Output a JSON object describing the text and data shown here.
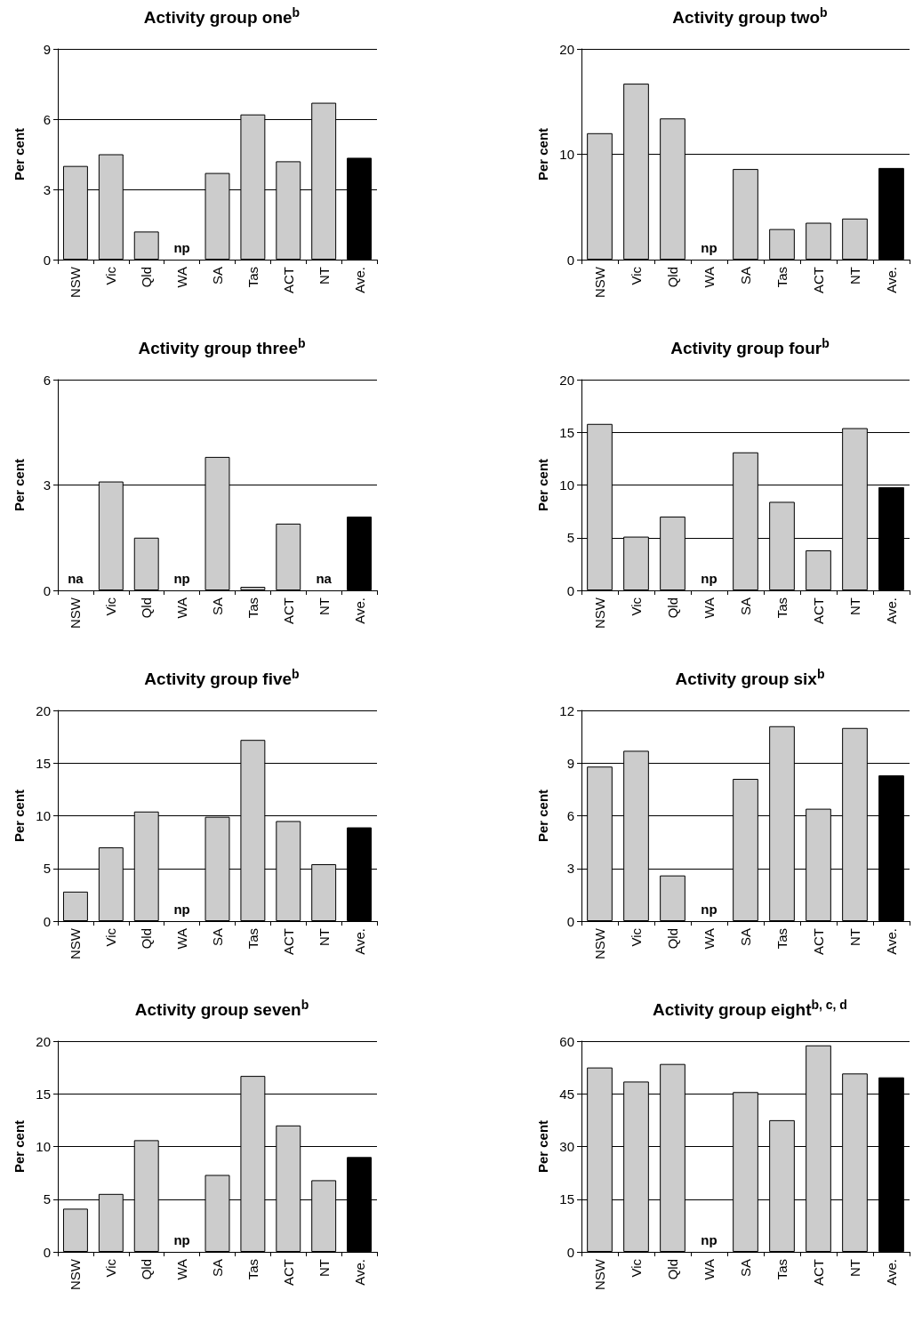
{
  "chart_data": [
    {
      "type": "bar",
      "title": "Activity group one$^{b}$",
      "ylabel": "Per cent",
      "categories": [
        "NSW",
        "Vic",
        "Qld",
        "WA",
        "SA",
        "Tas",
        "ACT",
        "NT",
        "Ave."
      ],
      "values": [
        4.0,
        4.5,
        1.2,
        null,
        3.7,
        6.2,
        4.2,
        6.7,
        4.35
      ],
      "value_labels": [
        null,
        null,
        null,
        "np",
        null,
        null,
        null,
        null,
        null
      ],
      "colors": [
        "#cccccc",
        "#cccccc",
        "#cccccc",
        "#cccccc",
        "#cccccc",
        "#cccccc",
        "#cccccc",
        "#cccccc",
        "#000000"
      ],
      "ylim": [
        0,
        9
      ],
      "yticks": [
        0,
        3,
        6,
        9
      ],
      "grid": "y"
    },
    {
      "type": "bar",
      "title": "Activity group two$^{b}$",
      "ylabel": "Per cent",
      "categories": [
        "NSW",
        "Vic",
        "Qld",
        "WA",
        "SA",
        "Tas",
        "ACT",
        "NT",
        "Ave."
      ],
      "values": [
        12.0,
        16.7,
        13.4,
        null,
        8.6,
        2.9,
        3.5,
        3.9,
        8.7
      ],
      "value_labels": [
        null,
        null,
        null,
        "np",
        null,
        null,
        null,
        null,
        null
      ],
      "colors": [
        "#cccccc",
        "#cccccc",
        "#cccccc",
        "#cccccc",
        "#cccccc",
        "#cccccc",
        "#cccccc",
        "#cccccc",
        "#000000"
      ],
      "ylim": [
        0,
        20
      ],
      "yticks": [
        0,
        10,
        20
      ],
      "grid": "y"
    },
    {
      "type": "bar",
      "title": "Activity group three$^{b}$",
      "ylabel": "Per cent",
      "categories": [
        "NSW",
        "Vic",
        "Qld",
        "WA",
        "SA",
        "Tas",
        "ACT",
        "NT",
        "Ave."
      ],
      "values": [
        null,
        3.1,
        1.5,
        null,
        3.8,
        0.1,
        1.9,
        null,
        2.1
      ],
      "value_labels": [
        "na",
        null,
        null,
        "np",
        null,
        null,
        null,
        "na",
        null
      ],
      "colors": [
        "#cccccc",
        "#cccccc",
        "#cccccc",
        "#cccccc",
        "#cccccc",
        "#cccccc",
        "#cccccc",
        "#cccccc",
        "#000000"
      ],
      "ylim": [
        0,
        6
      ],
      "yticks": [
        0,
        3,
        6
      ],
      "grid": "y"
    },
    {
      "type": "bar",
      "title": "Activity group four$^{b}$",
      "ylabel": "Per cent",
      "categories": [
        "NSW",
        "Vic",
        "Qld",
        "WA",
        "SA",
        "Tas",
        "ACT",
        "NT",
        "Ave."
      ],
      "values": [
        15.8,
        5.1,
        7.0,
        null,
        13.1,
        8.4,
        3.8,
        15.4,
        9.8
      ],
      "value_labels": [
        null,
        null,
        null,
        "np",
        null,
        null,
        null,
        null,
        null
      ],
      "colors": [
        "#cccccc",
        "#cccccc",
        "#cccccc",
        "#cccccc",
        "#cccccc",
        "#cccccc",
        "#cccccc",
        "#cccccc",
        "#000000"
      ],
      "ylim": [
        0,
        20
      ],
      "yticks": [
        0,
        5,
        10,
        15,
        20
      ],
      "grid": "y"
    },
    {
      "type": "bar",
      "title": "Activity group five$^{b}$",
      "ylabel": "Per cent",
      "categories": [
        "NSW",
        "Vic",
        "Qld",
        "WA",
        "SA",
        "Tas",
        "ACT",
        "NT",
        "Ave."
      ],
      "values": [
        2.8,
        7.0,
        10.4,
        null,
        9.9,
        17.2,
        9.5,
        5.4,
        8.9
      ],
      "value_labels": [
        null,
        null,
        null,
        "np",
        null,
        null,
        null,
        null,
        null
      ],
      "colors": [
        "#cccccc",
        "#cccccc",
        "#cccccc",
        "#cccccc",
        "#cccccc",
        "#cccccc",
        "#cccccc",
        "#cccccc",
        "#000000"
      ],
      "ylim": [
        0,
        20
      ],
      "yticks": [
        0,
        5,
        10,
        15,
        20
      ],
      "grid": "y"
    },
    {
      "type": "bar",
      "title": "Activity group six$^{b}$",
      "ylabel": "Per cent",
      "categories": [
        "NSW",
        "Vic",
        "Qld",
        "WA",
        "SA",
        "Tas",
        "ACT",
        "NT",
        "Ave."
      ],
      "values": [
        8.8,
        9.7,
        2.6,
        null,
        8.1,
        11.1,
        6.4,
        11.0,
        8.3
      ],
      "value_labels": [
        null,
        null,
        null,
        "np",
        null,
        null,
        null,
        null,
        null
      ],
      "colors": [
        "#cccccc",
        "#cccccc",
        "#cccccc",
        "#cccccc",
        "#cccccc",
        "#cccccc",
        "#cccccc",
        "#cccccc",
        "#000000"
      ],
      "ylim": [
        0,
        12
      ],
      "yticks": [
        0,
        3,
        6,
        9,
        12
      ],
      "grid": "y"
    },
    {
      "type": "bar",
      "title": "Activity group seven$^{b}$",
      "ylabel": "Per cent",
      "categories": [
        "NSW",
        "Vic",
        "Qld",
        "WA",
        "SA",
        "Tas",
        "ACT",
        "NT",
        "Ave."
      ],
      "values": [
        4.1,
        5.5,
        10.6,
        null,
        7.3,
        16.7,
        12.0,
        6.8,
        9.0
      ],
      "value_labels": [
        null,
        null,
        null,
        "np",
        null,
        null,
        null,
        null,
        null
      ],
      "colors": [
        "#cccccc",
        "#cccccc",
        "#cccccc",
        "#cccccc",
        "#cccccc",
        "#cccccc",
        "#cccccc",
        "#cccccc",
        "#000000"
      ],
      "ylim": [
        0,
        20
      ],
      "yticks": [
        0,
        5,
        10,
        15,
        20
      ],
      "grid": "y"
    },
    {
      "type": "bar",
      "title": "Activity group eight$^{b, c, d}$",
      "ylabel": "Per cent",
      "categories": [
        "NSW",
        "Vic",
        "Qld",
        "WA",
        "SA",
        "Tas",
        "ACT",
        "NT",
        "Ave."
      ],
      "values": [
        52.5,
        48.5,
        53.5,
        null,
        45.5,
        37.5,
        58.8,
        50.8,
        49.7
      ],
      "value_labels": [
        null,
        null,
        null,
        "np",
        null,
        null,
        null,
        null,
        null
      ],
      "colors": [
        "#cccccc",
        "#cccccc",
        "#cccccc",
        "#cccccc",
        "#cccccc",
        "#cccccc",
        "#cccccc",
        "#cccccc",
        "#000000"
      ],
      "ylim": [
        0,
        60
      ],
      "yticks": [
        0,
        15,
        30,
        45,
        60
      ],
      "grid": "y"
    }
  ]
}
